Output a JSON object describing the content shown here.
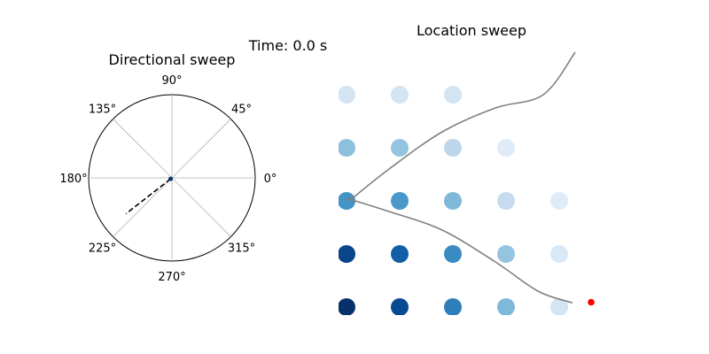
{
  "figure_title": "Time: 0.0 s",
  "chart_data": [
    {
      "type": "polar",
      "title": "Directional sweep",
      "angle_tick_labels": [
        "0°",
        "45°",
        "90°",
        "135°",
        "180°",
        "225°",
        "270°",
        "315°"
      ],
      "angle_ticks_deg": [
        0,
        45,
        90,
        135,
        180,
        225,
        270,
        315
      ],
      "radial_ticks": [],
      "direction_line": {
        "angle_deg": 218,
        "r_start": 0.02,
        "r_end": 0.7,
        "style": "dashed",
        "color": "#000000"
      },
      "marker": {
        "angle_deg": 218,
        "r": 0.02,
        "color": "#08306b"
      },
      "grid": true
    },
    {
      "type": "scatter",
      "title": "Location sweep",
      "colormap": "Blues",
      "x": [
        0,
        1,
        2,
        3,
        4
      ],
      "y": [
        0,
        1,
        2,
        3,
        4
      ],
      "grid_values": [
        [
          1.0,
          0.9,
          0.7,
          0.45,
          0.18
        ],
        [
          0.92,
          0.82,
          0.65,
          0.4,
          0.15
        ],
        [
          0.62,
          0.6,
          0.45,
          0.25,
          0.12
        ],
        [
          0.42,
          0.4,
          0.28,
          0.12,
          null
        ],
        [
          0.18,
          0.18,
          0.18,
          null,
          null
        ]
      ],
      "paths": [
        {
          "color": "#808080",
          "points": [
            [
              0.05,
              2.0
            ],
            [
              0.8,
              2.6
            ],
            [
              1.8,
              3.3
            ],
            [
              2.8,
              3.75
            ],
            [
              3.7,
              4.0
            ],
            [
              4.3,
              4.8
            ]
          ]
        },
        {
          "color": "#808080",
          "points": [
            [
              0.0,
              2.05
            ],
            [
              0.8,
              1.8
            ],
            [
              1.8,
              1.45
            ],
            [
              2.8,
              0.85
            ],
            [
              3.6,
              0.3
            ],
            [
              4.25,
              0.08
            ]
          ]
        }
      ],
      "end_marker": {
        "x": 4.6,
        "y": 0.1,
        "color": "#ff0000"
      },
      "axes_visible": false
    }
  ]
}
